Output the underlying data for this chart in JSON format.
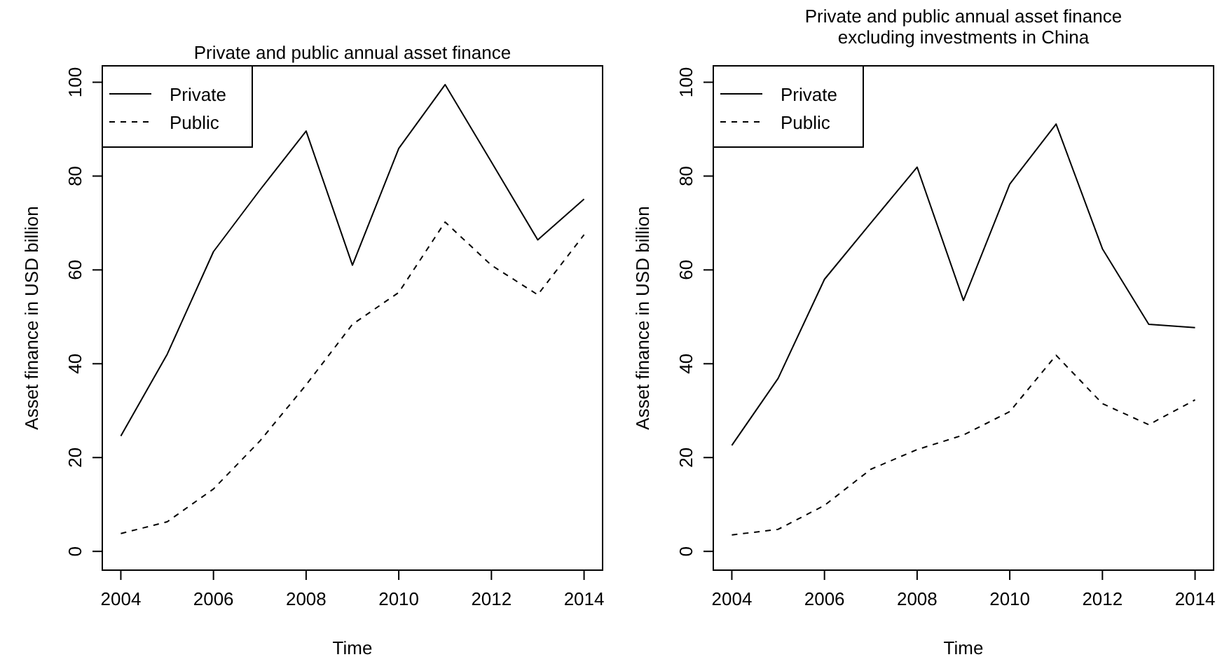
{
  "chart_data": [
    {
      "type": "line",
      "title": "Private and public annual asset finance",
      "xlabel": "Time",
      "ylabel": "Asset finance in USD billion",
      "x": [
        2004,
        2005,
        2006,
        2007,
        2008,
        2009,
        2010,
        2011,
        2012,
        2013,
        2014
      ],
      "series": [
        {
          "name": "Private",
          "color": "#000000",
          "line_style": "solid",
          "values": [
            24.6,
            42,
            63.9,
            77,
            89.6,
            61,
            85.9,
            99.5,
            83,
            66.4,
            75.1
          ]
        },
        {
          "name": "Public",
          "color": "#000000",
          "line_style": "dashed",
          "values": [
            3.8,
            6.3,
            13.3,
            23.5,
            35.5,
            48.4,
            55.2,
            70.2,
            61,
            54.7,
            67.5
          ]
        }
      ],
      "xlim": [
        2003.6,
        2014.4
      ],
      "xticks": [
        2004,
        2006,
        2008,
        2010,
        2012,
        2014
      ],
      "ylim": [
        -4,
        103.5
      ],
      "yticks": [
        0,
        20,
        40,
        60,
        80,
        100
      ],
      "legend": "top left",
      "grid": false
    },
    {
      "type": "line",
      "title": "Private and public annual asset finance\nexcluding investments in China",
      "xlabel": "Time",
      "ylabel": "Asset finance in USD billion",
      "x": [
        2004,
        2005,
        2006,
        2007,
        2008,
        2009,
        2010,
        2011,
        2012,
        2013,
        2014
      ],
      "series": [
        {
          "name": "Private",
          "color": "#000000",
          "line_style": "solid",
          "values": [
            22.6,
            36.9,
            58,
            70,
            81.9,
            53.5,
            78.3,
            91.1,
            64.5,
            48.4,
            47.7
          ]
        },
        {
          "name": "Public",
          "color": "#000000",
          "line_style": "dashed",
          "values": [
            3.5,
            4.7,
            9.8,
            17.5,
            21.7,
            24.8,
            29.8,
            41.8,
            31.5,
            27,
            32.3
          ]
        }
      ],
      "xlim": [
        2003.6,
        2014.4
      ],
      "xticks": [
        2004,
        2006,
        2008,
        2010,
        2012,
        2014
      ],
      "ylim": [
        -4,
        103.5
      ],
      "yticks": [
        0,
        20,
        40,
        60,
        80,
        100
      ],
      "legend": "top left",
      "grid": false
    }
  ]
}
